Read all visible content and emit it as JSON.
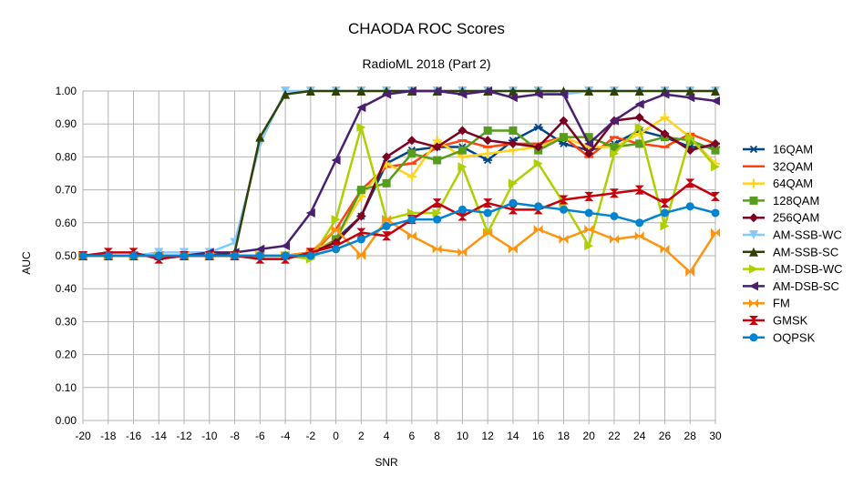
{
  "chart_data": {
    "type": "line",
    "title": "CHAODA ROC Scores",
    "subtitle": "RadioML 2018 (Part 2)",
    "xlabel": "SNR",
    "ylabel": "AUC",
    "ylim": [
      0,
      1
    ],
    "yticks": [
      "0.00",
      "0.10",
      "0.20",
      "0.30",
      "0.40",
      "0.50",
      "0.60",
      "0.70",
      "0.80",
      "0.90",
      "1.00"
    ],
    "x": [
      -20,
      -18,
      -16,
      -14,
      -12,
      -10,
      -8,
      -6,
      -4,
      -2,
      0,
      2,
      4,
      6,
      8,
      10,
      12,
      14,
      16,
      18,
      20,
      22,
      24,
      26,
      28,
      30
    ],
    "grid": true,
    "legend": "right",
    "series": [
      {
        "name": "16QAM",
        "color": "#004586",
        "marker": "star",
        "values": [
          0.5,
          0.5,
          0.5,
          0.5,
          0.5,
          0.5,
          0.5,
          0.5,
          0.5,
          0.5,
          0.55,
          0.62,
          0.78,
          0.82,
          0.83,
          0.83,
          0.79,
          0.85,
          0.89,
          0.84,
          0.82,
          0.84,
          0.88,
          0.86,
          0.83,
          0.83
        ]
      },
      {
        "name": "32QAM",
        "color": "#ff420e",
        "marker": "dash",
        "values": [
          0.5,
          0.5,
          0.5,
          0.5,
          0.5,
          0.5,
          0.5,
          0.5,
          0.5,
          0.5,
          0.58,
          0.7,
          0.77,
          0.78,
          0.83,
          0.85,
          0.83,
          0.84,
          0.84,
          0.86,
          0.8,
          0.86,
          0.84,
          0.83,
          0.87,
          0.84
        ]
      },
      {
        "name": "64QAM",
        "color": "#ffd320",
        "marker": "plus",
        "values": [
          0.5,
          0.5,
          0.5,
          0.5,
          0.5,
          0.5,
          0.5,
          0.5,
          0.5,
          0.51,
          0.55,
          0.68,
          0.78,
          0.74,
          0.85,
          0.8,
          0.81,
          0.82,
          0.83,
          0.86,
          0.83,
          0.83,
          0.87,
          0.92,
          0.86,
          0.78
        ]
      },
      {
        "name": "128QAM",
        "color": "#579d1c",
        "marker": "square",
        "values": [
          0.5,
          0.5,
          0.5,
          0.5,
          0.5,
          0.5,
          0.5,
          0.5,
          0.5,
          0.5,
          0.55,
          0.7,
          0.72,
          0.81,
          0.79,
          0.82,
          0.88,
          0.88,
          0.82,
          0.86,
          0.86,
          0.83,
          0.84,
          0.86,
          0.85,
          0.82
        ]
      },
      {
        "name": "256QAM",
        "color": "#7e0021",
        "marker": "diamond",
        "values": [
          0.5,
          0.5,
          0.5,
          0.5,
          0.5,
          0.5,
          0.5,
          0.5,
          0.5,
          0.51,
          0.54,
          0.62,
          0.8,
          0.85,
          0.83,
          0.88,
          0.85,
          0.84,
          0.83,
          0.91,
          0.81,
          0.91,
          0.92,
          0.87,
          0.82,
          0.84
        ]
      },
      {
        "name": "AM-SSB-WC",
        "color": "#83caff",
        "marker": "triangle-down",
        "values": [
          0.5,
          0.5,
          0.5,
          0.51,
          0.51,
          0.51,
          0.54,
          0.84,
          1.0,
          1.0,
          1.0,
          1.0,
          1.0,
          1.0,
          1.0,
          1.0,
          1.0,
          1.0,
          1.0,
          0.99,
          1.0,
          1.0,
          1.0,
          1.0,
          1.0,
          1.0
        ]
      },
      {
        "name": "AM-SSB-SC",
        "color": "#314004",
        "marker": "triangle-up",
        "values": [
          0.5,
          0.5,
          0.5,
          0.5,
          0.5,
          0.5,
          0.51,
          0.86,
          0.99,
          1.0,
          1.0,
          1.0,
          1.0,
          1.0,
          1.0,
          1.0,
          1.0,
          1.0,
          1.0,
          1.0,
          1.0,
          1.0,
          1.0,
          1.0,
          1.0,
          1.0
        ]
      },
      {
        "name": "AM-DSB-WC",
        "color": "#aecf00",
        "marker": "triangle-right",
        "values": [
          0.5,
          0.5,
          0.5,
          0.5,
          0.5,
          0.5,
          0.5,
          0.5,
          0.5,
          0.49,
          0.61,
          0.89,
          0.61,
          0.63,
          0.63,
          0.77,
          0.57,
          0.72,
          0.78,
          0.66,
          0.53,
          0.81,
          0.89,
          0.59,
          0.86,
          0.77
        ]
      },
      {
        "name": "AM-DSB-SC",
        "color": "#4b1f6f",
        "marker": "triangle-left",
        "values": [
          0.5,
          0.5,
          0.5,
          0.5,
          0.5,
          0.51,
          0.51,
          0.52,
          0.53,
          0.63,
          0.79,
          0.95,
          0.99,
          1.0,
          1.0,
          0.99,
          1.0,
          0.98,
          0.99,
          0.99,
          0.84,
          0.91,
          0.96,
          0.99,
          0.98,
          0.97
        ]
      },
      {
        "name": "FM",
        "color": "#ff950e",
        "marker": "bowtie",
        "values": [
          0.5,
          0.5,
          0.5,
          0.5,
          0.5,
          0.5,
          0.5,
          0.5,
          0.5,
          0.51,
          0.58,
          0.5,
          0.61,
          0.56,
          0.52,
          0.51,
          0.57,
          0.52,
          0.58,
          0.55,
          0.58,
          0.55,
          0.56,
          0.52,
          0.45,
          0.57
        ]
      },
      {
        "name": "GMSK",
        "color": "#c5000b",
        "marker": "hourglass",
        "values": [
          0.5,
          0.51,
          0.51,
          0.49,
          0.5,
          0.5,
          0.5,
          0.49,
          0.49,
          0.51,
          0.53,
          0.57,
          0.56,
          0.61,
          0.66,
          0.62,
          0.66,
          0.64,
          0.64,
          0.67,
          0.68,
          0.69,
          0.7,
          0.66,
          0.72,
          0.68
        ]
      },
      {
        "name": "OQPSK",
        "color": "#0084d1",
        "marker": "circle",
        "values": [
          0.5,
          0.5,
          0.5,
          0.5,
          0.5,
          0.5,
          0.5,
          0.5,
          0.5,
          0.5,
          0.52,
          0.55,
          0.59,
          0.61,
          0.61,
          0.64,
          0.63,
          0.66,
          0.65,
          0.64,
          0.63,
          0.62,
          0.6,
          0.63,
          0.65,
          0.63
        ]
      }
    ]
  }
}
